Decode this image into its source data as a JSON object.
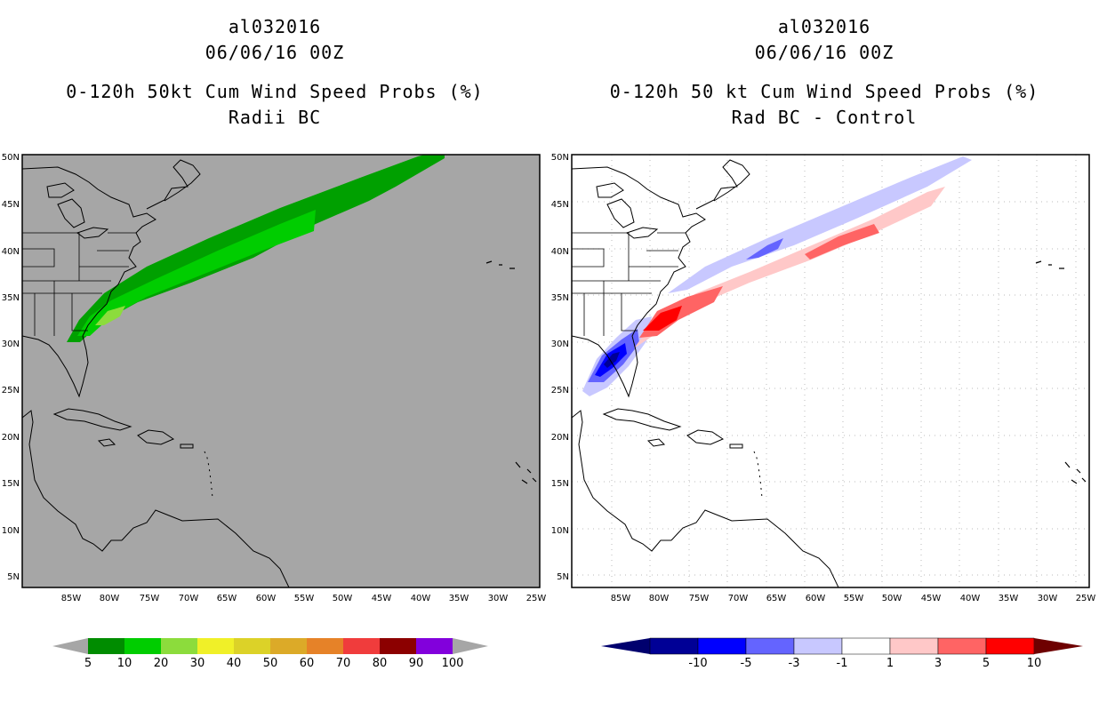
{
  "left": {
    "storm_id": "al032016",
    "datetime": "06/06/16 00Z",
    "product": "0-120h 50kt Cum Wind Speed Probs (%)",
    "subtitle": "Radii BC",
    "lon_labels": [
      "85W",
      "80W",
      "75W",
      "70W",
      "65W",
      "60W",
      "55W",
      "50W",
      "45W",
      "40W",
      "35W",
      "30W",
      "25W"
    ],
    "lat_labels": [
      "50N",
      "45N",
      "40N",
      "35N",
      "30N",
      "25N",
      "20N",
      "15N",
      "10N",
      "5N"
    ],
    "colorbar": {
      "labels": [
        "5",
        "10",
        "20",
        "30",
        "40",
        "50",
        "60",
        "70",
        "80",
        "90",
        "100"
      ],
      "colors": [
        "#008c00",
        "#00cd00",
        "#8cdc3c",
        "#f0f028",
        "#dcd228",
        "#dcaa28",
        "#e68228",
        "#f03c3c",
        "#8c0000",
        "#8200dc"
      ],
      "end_color": "#a6a6a6"
    },
    "colors": {
      "background": "#a6a6a6",
      "band_outer": "#00a000",
      "band_mid": "#00cd00",
      "band_inner": "#8cdc3c"
    }
  },
  "right": {
    "storm_id": "al032016",
    "datetime": "06/06/16 00Z",
    "product": "0-120h 50 kt Cum Wind Speed Probs (%)",
    "subtitle": "Rad BC - Control",
    "lon_labels": [
      "85W",
      "80W",
      "75W",
      "70W",
      "65W",
      "60W",
      "55W",
      "50W",
      "45W",
      "40W",
      "35W",
      "30W",
      "25W"
    ],
    "lat_labels": [
      "50N",
      "45N",
      "40N",
      "35N",
      "30N",
      "25N",
      "20N",
      "15N",
      "10N",
      "5N"
    ],
    "colorbar": {
      "labels": [
        "-10",
        "-5",
        "-3",
        "-1",
        "1",
        "3",
        "5",
        "10"
      ],
      "colors": [
        "#000096",
        "#0000ff",
        "#6464ff",
        "#c8c8ff",
        "#ffffff",
        "#ffc8c8",
        "#ff6464",
        "#ff0000"
      ],
      "end_low": "#00006e",
      "end_high": "#6e0000"
    },
    "colors": {
      "neg_light": "#c8c8ff",
      "neg_mid": "#6464ff",
      "neg_strong": "#0000ff",
      "neg_max": "#000096",
      "pos_light": "#ffc8c8",
      "pos_mid": "#ff6464",
      "pos_strong": "#ff0000"
    }
  }
}
